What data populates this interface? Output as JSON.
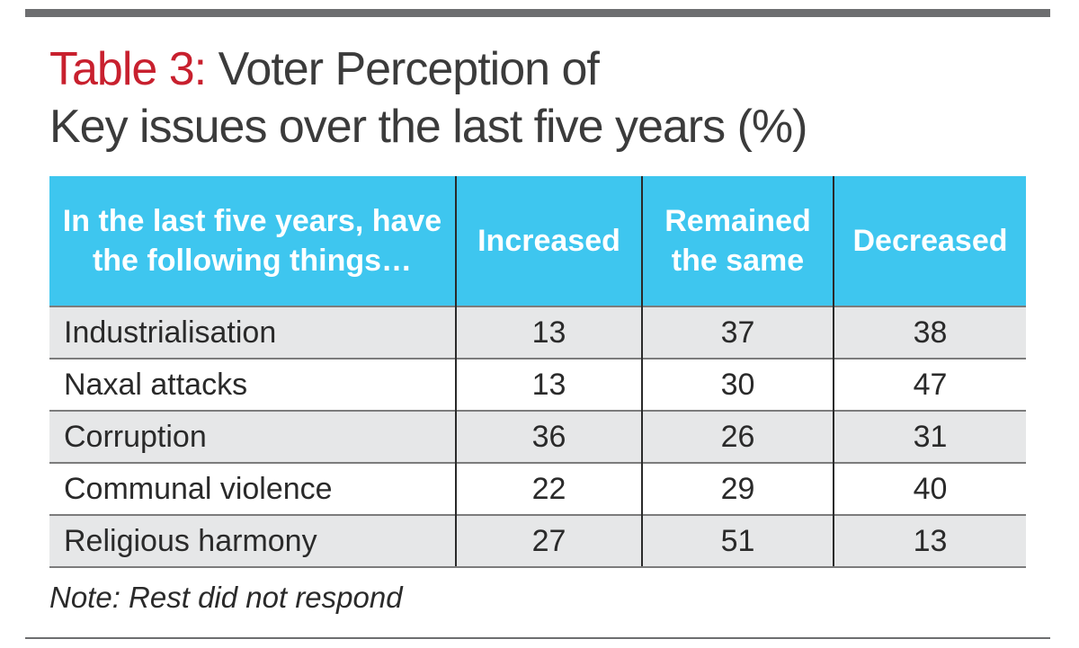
{
  "title": {
    "lead": "Table 3:",
    "line1": " Voter Perception of",
    "line2": "Key issues over the last five years (%)"
  },
  "note": "Note: Rest did not respond",
  "colors": {
    "lead_red": "#c8202e",
    "header_blue": "#3ec6ef",
    "band_gray": "#e6e7e8",
    "rule_gray": "#6d6e70"
  },
  "chart_data": {
    "type": "table",
    "columns": [
      "In the last five years, have the following things…",
      "Increased",
      "Remained the same",
      "Decreased"
    ],
    "rows": [
      {
        "label": "Industrialisation",
        "values": [
          13,
          37,
          38
        ]
      },
      {
        "label": "Naxal attacks",
        "values": [
          13,
          30,
          47
        ]
      },
      {
        "label": "Corruption",
        "values": [
          36,
          26,
          31
        ]
      },
      {
        "label": "Communal violence",
        "values": [
          22,
          29,
          40
        ]
      },
      {
        "label": "Religious harmony",
        "values": [
          27,
          51,
          13
        ]
      }
    ]
  }
}
